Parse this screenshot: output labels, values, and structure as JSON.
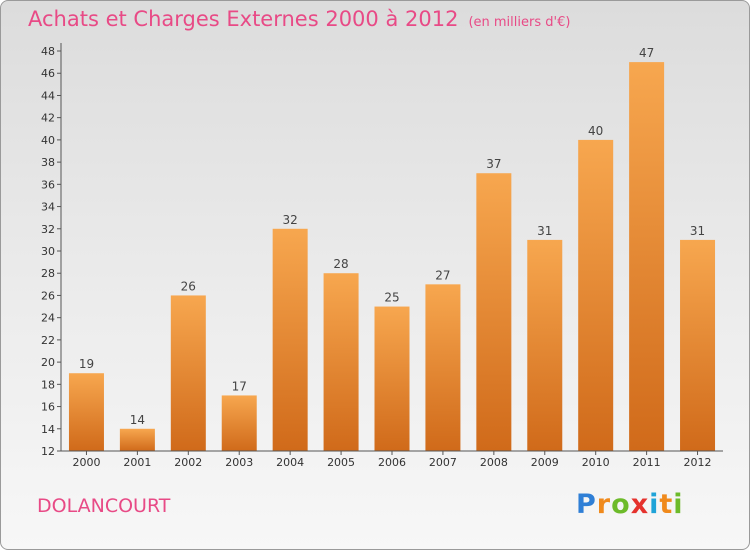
{
  "title": "Achats et Charges Externes 2000 à 2012",
  "title_unit": "(en milliers d'€)",
  "town": "DOLANCOURT",
  "logo": {
    "letters": [
      "P",
      "r",
      "o",
      "x",
      "i",
      "t",
      "i"
    ],
    "colors": [
      "#2f7fd6",
      "#f08a1c",
      "#6dbb2a",
      "#e5322d",
      "#1fa3d8",
      "#f08a1c",
      "#6dbb2a"
    ]
  },
  "colors": {
    "title": "#e84a86",
    "bar_light": "#f7a74f",
    "bar_dark": "#d06a1a",
    "axis": "#555555"
  },
  "chart_data": {
    "type": "bar",
    "categories": [
      "2000",
      "2001",
      "2002",
      "2003",
      "2004",
      "2005",
      "2006",
      "2007",
      "2008",
      "2009",
      "2010",
      "2011",
      "2012"
    ],
    "values": [
      19,
      14,
      26,
      17,
      32,
      28,
      25,
      27,
      37,
      31,
      40,
      47,
      31
    ],
    "title": "Achats et Charges Externes 2000 à 2012",
    "xlabel": "",
    "ylabel": "",
    "ylim": [
      12,
      48
    ],
    "yticks": [
      12,
      14,
      16,
      18,
      20,
      22,
      24,
      26,
      28,
      30,
      32,
      34,
      36,
      38,
      40,
      42,
      44,
      46,
      48
    ],
    "grid": false,
    "legend": "none"
  }
}
